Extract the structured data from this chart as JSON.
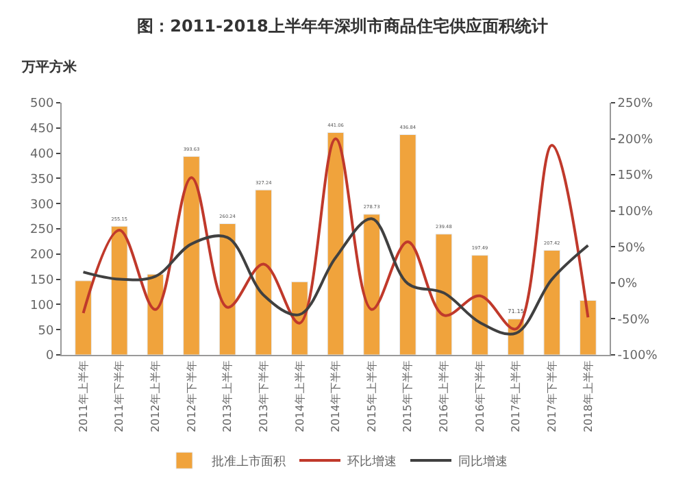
{
  "chart_data": {
    "type": "bar",
    "title": "图：2011-2018上半年年深圳市商品住宅供应面积统计",
    "ylabel": "万平方米",
    "categories": [
      "2011年上半年",
      "2011年下半年",
      "2012年上半年",
      "2012年下半年",
      "2013年上半年",
      "2013年下半年",
      "2014年上半年",
      "2014年下半年",
      "2015年上半年",
      "2015年下半年",
      "2016年上半年",
      "2016年下半年",
      "2017年上半年",
      "2017年下半年",
      "2018年上半年"
    ],
    "series": [
      {
        "name": "批准上市面积",
        "color": "#f0a33c",
        "values": [
          147,
          255.15,
          160,
          393.63,
          260.24,
          327.24,
          145,
          441.06,
          278.73,
          436.84,
          239.48,
          197.49,
          71.15,
          207.42,
          108
        ],
        "value_labels": [
          null,
          "255.15",
          null,
          "393.63",
          "260.24",
          "327.24",
          null,
          "441.06",
          "278.73",
          "436.84",
          "239.48",
          "197.49",
          "71.15",
          "207.42",
          null
        ]
      },
      {
        "name": "环比增速",
        "type": "line",
        "axis": "y2",
        "color": "#c0392b",
        "values": [
          -42,
          73,
          -37,
          146,
          -34,
          26,
          -56,
          200,
          -37,
          57,
          -45,
          -18,
          -64,
          191,
          -48
        ]
      },
      {
        "name": "同比增速",
        "type": "line",
        "axis": "y2",
        "color": "#404040",
        "values": [
          15,
          5,
          9,
          54,
          63,
          -17,
          -44,
          35,
          89,
          -1,
          -14,
          -55,
          -70,
          5,
          52
        ]
      }
    ],
    "ylim": [
      0,
      500
    ],
    "yticks": [
      0,
      50,
      100,
      150,
      200,
      250,
      300,
      350,
      400,
      450,
      500
    ],
    "y2lim": [
      -100,
      250
    ],
    "y2ticks": [
      {
        "value": -100,
        "label": "-100%"
      },
      {
        "value": -50,
        "label": "-50%"
      },
      {
        "value": 0,
        "label": "0%"
      },
      {
        "value": 50,
        "label": "50%"
      },
      {
        "value": 100,
        "label": "100%"
      },
      {
        "value": 150,
        "label": "150%"
      },
      {
        "value": 200,
        "label": "200%"
      },
      {
        "value": 250,
        "label": "250%"
      }
    ],
    "legend": "bottom",
    "marker": "none",
    "line_style": "solid"
  }
}
